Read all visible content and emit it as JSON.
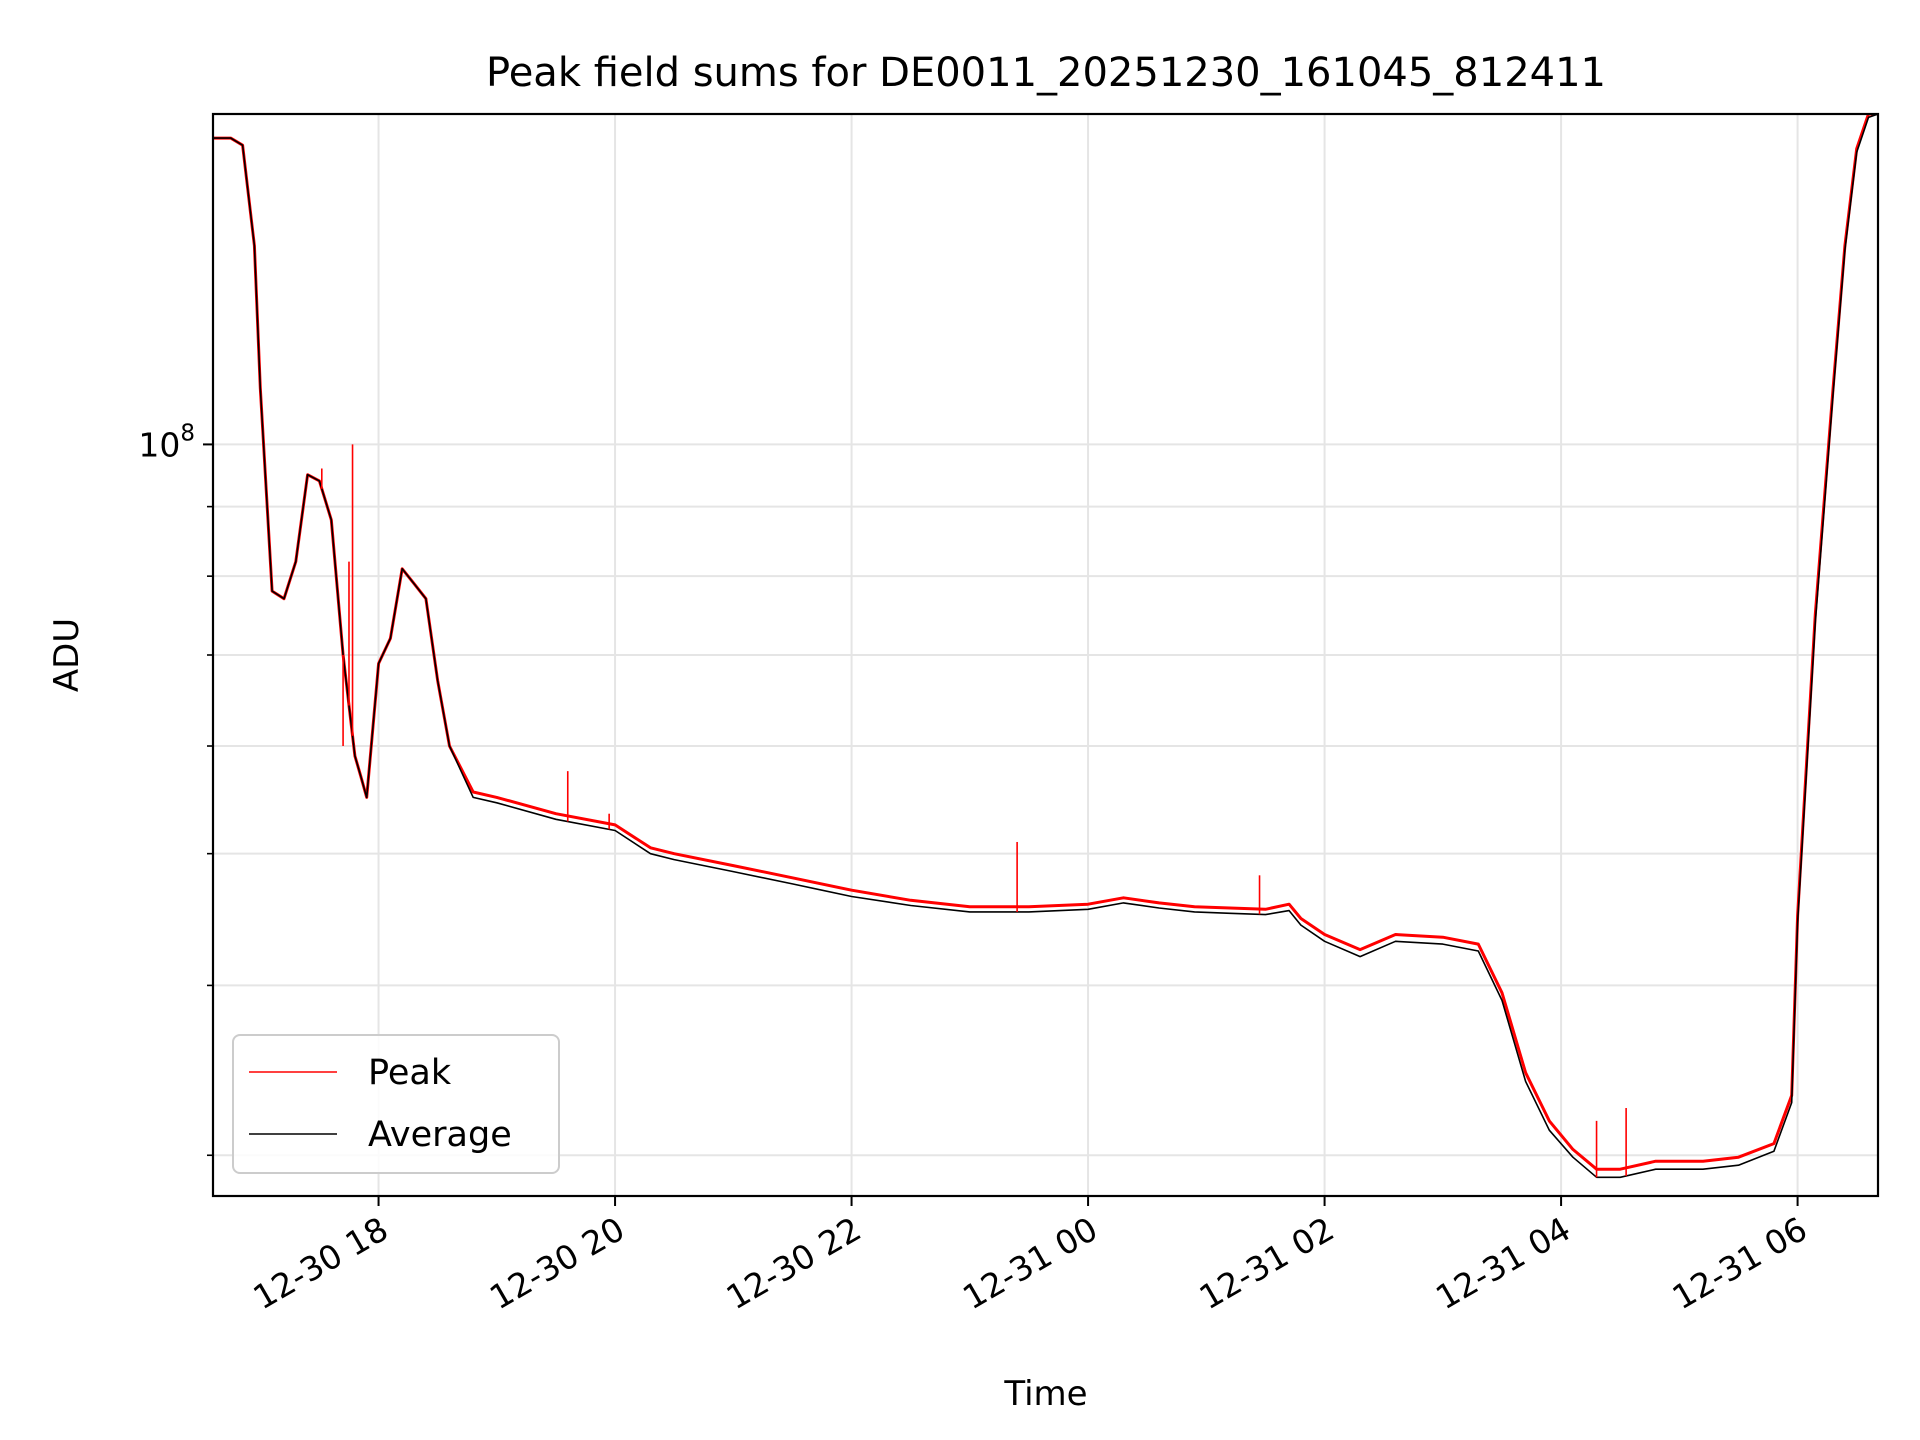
{
  "chart_data": {
    "type": "line",
    "title": "Peak field sums for DE0011_20251230_161045_812411",
    "xlabel": "Time",
    "ylabel": "ADU",
    "y_scale": "log",
    "xlim": [
      16.6,
      30.68
    ],
    "ylim": [
      28000000,
      175000000
    ],
    "grid": true,
    "legend_position": "lower-left",
    "x_ticks": [
      {
        "value": 18,
        "label": "12-30 18"
      },
      {
        "value": 20,
        "label": "12-30 20"
      },
      {
        "value": 22,
        "label": "12-30 22"
      },
      {
        "value": 24,
        "label": "12-31 00"
      },
      {
        "value": 26,
        "label": "12-31 02"
      },
      {
        "value": 28,
        "label": "12-31 04"
      },
      {
        "value": 30,
        "label": "12-31 06"
      }
    ],
    "y_major_tick": {
      "value": 100000000,
      "base": "10",
      "exponent": "8"
    },
    "y_minor_grid": [
      30000000,
      40000000,
      50000000,
      60000000,
      70000000,
      80000000,
      90000000,
      200000000
    ],
    "series": [
      {
        "name": "Peak",
        "color": "#ff0000",
        "x": [
          16.6,
          16.75,
          16.85,
          16.95,
          17.0,
          17.1,
          17.2,
          17.3,
          17.4,
          17.5,
          17.6,
          17.7,
          17.8,
          17.85,
          17.9,
          18.0,
          18.1,
          18.2,
          18.3,
          18.4,
          18.5,
          18.6,
          18.8,
          19.0,
          19.5,
          20.0,
          20.3,
          20.5,
          21.0,
          21.5,
          22.0,
          22.5,
          23.0,
          23.5,
          24.0,
          24.3,
          24.6,
          24.9,
          25.2,
          25.5,
          25.7,
          25.8,
          26.0,
          26.3,
          26.6,
          27.0,
          27.3,
          27.5,
          27.7,
          27.9,
          28.1,
          28.3,
          28.5,
          28.8,
          29.2,
          29.5,
          29.8,
          29.95,
          30.0,
          30.15,
          30.3,
          30.4,
          30.5,
          30.6,
          30.68
        ],
        "values": [
          168000000,
          168000000,
          166000000,
          140000000,
          110000000,
          78000000,
          77000000,
          82000000,
          95000000,
          94000000,
          88000000,
          70000000,
          59000000,
          57000000,
          55000000,
          69000000,
          72000000,
          81000000,
          79000000,
          77000000,
          67000000,
          60000000,
          55500000,
          55000000,
          53500000,
          52500000,
          50500000,
          50000000,
          49000000,
          48000000,
          47000000,
          46200000,
          45700000,
          45700000,
          45900000,
          46400000,
          46000000,
          45700000,
          45600000,
          45500000,
          45900000,
          44800000,
          43600000,
          42500000,
          43600000,
          43400000,
          42900000,
          39500000,
          34500000,
          31800000,
          30300000,
          29300000,
          29300000,
          29700000,
          29700000,
          29900000,
          30600000,
          33200000,
          45000000,
          75000000,
          110000000,
          140000000,
          165000000,
          175000000,
          180000000
        ]
      },
      {
        "name": "Average",
        "color": "#000000",
        "x": [
          16.6,
          16.75,
          16.85,
          16.95,
          17.0,
          17.1,
          17.2,
          17.3,
          17.4,
          17.5,
          17.6,
          17.7,
          17.8,
          17.85,
          17.9,
          18.0,
          18.1,
          18.2,
          18.3,
          18.4,
          18.5,
          18.6,
          18.8,
          19.0,
          19.5,
          20.0,
          20.3,
          20.5,
          21.0,
          21.5,
          22.0,
          22.5,
          23.0,
          23.5,
          24.0,
          24.3,
          24.6,
          24.9,
          25.2,
          25.5,
          25.7,
          25.8,
          26.0,
          26.3,
          26.6,
          27.0,
          27.3,
          27.5,
          27.7,
          27.9,
          28.1,
          28.3,
          28.5,
          28.8,
          29.2,
          29.5,
          29.8,
          29.95,
          30.0,
          30.15,
          30.3,
          30.4,
          30.5,
          30.6,
          30.68
        ],
        "values": [
          168000000,
          168000000,
          166000000,
          140000000,
          110000000,
          78000000,
          77000000,
          82000000,
          95000000,
          94000000,
          88000000,
          70000000,
          59000000,
          57000000,
          55000000,
          69000000,
          72000000,
          81000000,
          79000000,
          77000000,
          67000000,
          60000000,
          55000000,
          54500000,
          53000000,
          52000000,
          50000000,
          49500000,
          48500000,
          47500000,
          46500000,
          45800000,
          45300000,
          45300000,
          45500000,
          46000000,
          45600000,
          45300000,
          45200000,
          45100000,
          45400000,
          44300000,
          43100000,
          42000000,
          43100000,
          42900000,
          42400000,
          39000000,
          34000000,
          31300000,
          29900000,
          28900000,
          28900000,
          29300000,
          29300000,
          29500000,
          30200000,
          32800000,
          44500000,
          74000000,
          109000000,
          139000000,
          164000000,
          174000000,
          179000000
        ]
      }
    ],
    "peak_spikes": [
      {
        "x": 17.52,
        "value": 96000000
      },
      {
        "x": 17.7,
        "value": 60000000
      },
      {
        "x": 17.75,
        "value": 82000000
      },
      {
        "x": 17.78,
        "value": 100000000
      },
      {
        "x": 19.6,
        "value": 57500000
      },
      {
        "x": 19.95,
        "value": 53500000
      },
      {
        "x": 23.4,
        "value": 51000000
      },
      {
        "x": 25.45,
        "value": 48200000
      },
      {
        "x": 28.3,
        "value": 31800000
      },
      {
        "x": 28.55,
        "value": 32500000
      }
    ]
  }
}
